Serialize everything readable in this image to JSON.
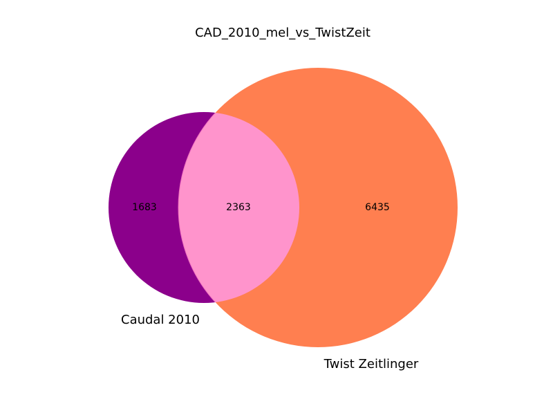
{
  "diagram": {
    "title": "CAD_2010_mel_vs_TwistZeit",
    "sets": [
      {
        "label": "Caudal 2010",
        "color": "#8b008b"
      },
      {
        "label": "Twist Zeitlinger",
        "color": "#ff7f50"
      }
    ],
    "overlap_color": "#ff94cc",
    "regions": {
      "only_caudal": "1683",
      "shared": "2363",
      "only_twist": "6435"
    }
  }
}
